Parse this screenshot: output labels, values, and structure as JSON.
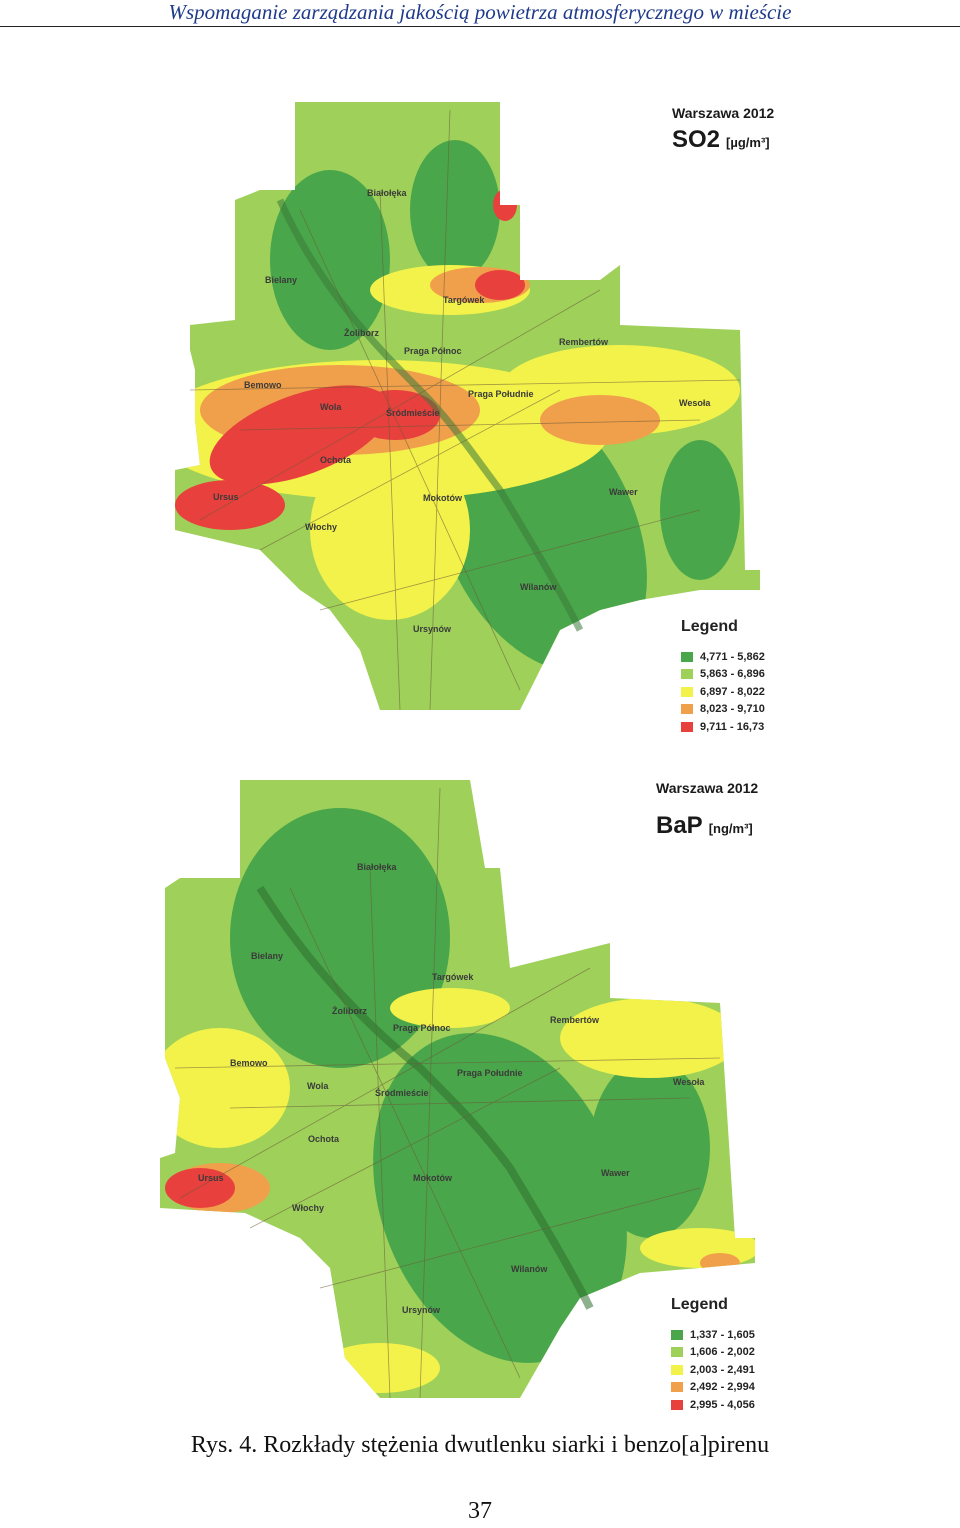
{
  "header": {
    "running_title": "Wspomaganie zarządzania jakością powietrza atmosferycznego w mieście"
  },
  "maps": [
    {
      "city_year": "Warszawa 2012",
      "pollutant": "SO2",
      "unit": "[µg/m³]",
      "legend_title": "Legend",
      "legend": [
        {
          "label": "4,771 - 5,862",
          "color": "#4aa64a"
        },
        {
          "label": "5,863 - 6,896",
          "color": "#9ed05a"
        },
        {
          "label": "6,897 - 8,022",
          "color": "#f2f24a"
        },
        {
          "label": "8,023 - 9,710",
          "color": "#f0a04a"
        },
        {
          "label": "9,711 - 16,73",
          "color": "#e8403c"
        }
      ],
      "districts": [
        "Białołęka",
        "Bielany",
        "Targówek",
        "Żoliborz",
        "Praga Północ",
        "Rembertów",
        "Bemowo",
        "Wola",
        "Śródmieście",
        "Praga Południe",
        "Wesoła",
        "Ochota",
        "Ursus",
        "Mokotów",
        "Wawer",
        "Włochy",
        "Wilanów",
        "Ursynów"
      ]
    },
    {
      "city_year": "Warszawa 2012",
      "pollutant": "BaP",
      "unit": "[ng/m³]",
      "legend_title": "Legend",
      "legend": [
        {
          "label": "1,337 - 1,605",
          "color": "#4aa64a"
        },
        {
          "label": "1,606 - 2,002",
          "color": "#9ed05a"
        },
        {
          "label": "2,003 - 2,491",
          "color": "#f2f24a"
        },
        {
          "label": "2,492 - 2,994",
          "color": "#f0a04a"
        },
        {
          "label": "2,995 - 4,056",
          "color": "#e8403c"
        }
      ],
      "districts": [
        "Białołęka",
        "Bielany",
        "Targówek",
        "Żoliborz",
        "Praga Północ",
        "Rembertów",
        "Bemowo",
        "Wola",
        "Śródmieście",
        "Praga Południe",
        "Wesoła",
        "Ochota",
        "Ursus",
        "Mokotów",
        "Wawer",
        "Włochy",
        "Wilanów",
        "Ursynów"
      ]
    }
  ],
  "caption": "Rys. 4. Rozkłady stężenia dwutlenku siarki i benzo[a]pirenu",
  "page_number": "37"
}
